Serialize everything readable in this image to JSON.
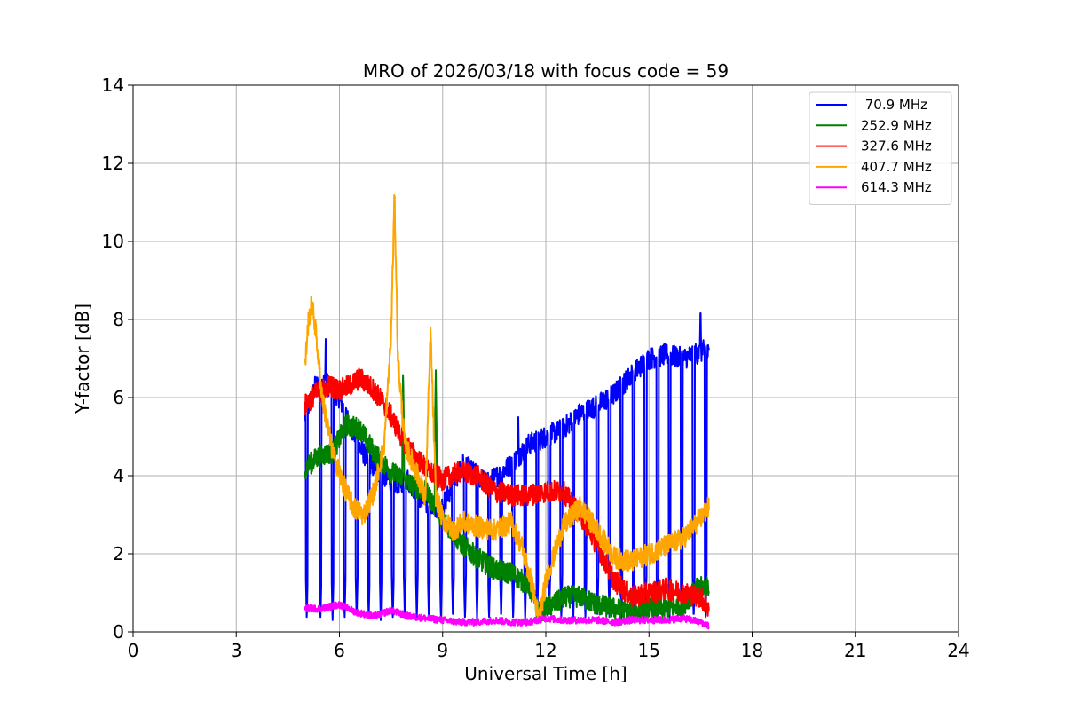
{
  "chart_data": {
    "type": "line",
    "title": "MRO of 2026/03/18 with focus code = 59",
    "xlabel": "Universal Time [h]",
    "ylabel": "Y-factor [dB]",
    "xlim": [
      0,
      24
    ],
    "ylim": [
      0,
      14
    ],
    "xticks": [
      0,
      3,
      6,
      9,
      12,
      15,
      18,
      21,
      24
    ],
    "yticks": [
      0,
      2,
      4,
      6,
      8,
      10,
      12,
      14
    ],
    "grid": true,
    "legend_position": "top-right",
    "series": [
      {
        "name": " 70.9 MHz",
        "color": "#0000ff",
        "x": [
          5.0,
          5.3,
          5.6,
          6.0,
          6.3,
          6.6,
          7.0,
          7.3,
          7.6,
          8.0,
          8.3,
          8.6,
          9.0,
          9.3,
          9.6,
          10.0,
          10.3,
          10.6,
          11.0,
          11.5,
          12.0,
          12.5,
          13.0,
          13.5,
          14.0,
          14.5,
          15.0,
          15.5,
          16.0,
          16.3,
          16.6,
          16.75
        ],
        "values": [
          5.5,
          6.3,
          6.4,
          6.0,
          5.3,
          4.7,
          4.2,
          4.0,
          3.8,
          3.9,
          3.5,
          3.2,
          3.2,
          3.8,
          4.3,
          4.0,
          3.8,
          4.0,
          4.3,
          4.8,
          5.0,
          5.2,
          5.6,
          5.8,
          6.1,
          6.6,
          7.0,
          7.1,
          7.0,
          7.1,
          7.2,
          7.1
        ],
        "dips": [
          5.05,
          5.45,
          5.8,
          6.15,
          6.5,
          6.85,
          7.2,
          7.55,
          7.9,
          8.25,
          8.6,
          8.95,
          9.3,
          9.65,
          10.0,
          10.35,
          10.7,
          11.05,
          11.4,
          11.75,
          12.1,
          12.45,
          12.8,
          13.15,
          13.5,
          13.85,
          14.2,
          14.55,
          14.9,
          15.25,
          15.6,
          15.95,
          16.3,
          16.65
        ],
        "spikes": [
          [
            5.6,
            7.5
          ],
          [
            16.5,
            8.4
          ],
          [
            11.2,
            5.5
          ]
        ]
      },
      {
        "name": "252.9 MHz",
        "color": "#008000",
        "x": [
          5.0,
          5.4,
          5.8,
          6.2,
          6.6,
          7.0,
          7.5,
          8.0,
          8.5,
          9.0,
          9.5,
          10.0,
          10.5,
          11.0,
          11.5,
          11.8,
          12.2,
          12.6,
          13.0,
          13.5,
          14.0,
          14.5,
          15.0,
          15.5,
          16.0,
          16.4,
          16.75
        ],
        "values": [
          4.2,
          4.5,
          4.6,
          5.3,
          5.2,
          4.6,
          4.1,
          3.8,
          3.6,
          2.9,
          2.3,
          1.9,
          1.6,
          1.5,
          1.2,
          0.5,
          0.7,
          0.9,
          0.9,
          0.7,
          0.6,
          0.5,
          0.6,
          0.6,
          0.7,
          1.1,
          1.2
        ],
        "spikes": [
          [
            7.85,
            6.7
          ],
          [
            8.8,
            6.7
          ]
        ]
      },
      {
        "name": "327.6 MHz",
        "color": "#ff0000",
        "x": [
          5.0,
          5.3,
          5.7,
          6.0,
          6.3,
          6.6,
          7.0,
          7.4,
          7.8,
          8.2,
          8.6,
          9.0,
          9.5,
          10.0,
          10.5,
          11.0,
          11.5,
          12.0,
          12.5,
          13.0,
          13.5,
          14.0,
          14.5,
          15.0,
          15.5,
          16.0,
          16.5,
          16.75
        ],
        "values": [
          5.8,
          6.1,
          6.3,
          6.2,
          6.3,
          6.5,
          6.2,
          5.7,
          5.0,
          4.5,
          4.1,
          3.9,
          4.1,
          4.0,
          3.6,
          3.5,
          3.5,
          3.6,
          3.6,
          3.0,
          2.2,
          1.3,
          0.9,
          1.0,
          1.1,
          1.0,
          0.9,
          0.6
        ]
      },
      {
        "name": "407.7 MHz",
        "color": "#ffa500",
        "x": [
          5.0,
          5.1,
          5.2,
          5.3,
          5.5,
          5.8,
          6.1,
          6.4,
          6.7,
          7.0,
          7.3,
          7.5,
          7.6,
          7.7,
          7.9,
          8.2,
          8.5,
          8.65,
          8.8,
          9.0,
          9.3,
          9.6,
          10.0,
          10.5,
          11.0,
          11.3,
          11.6,
          11.8,
          12.0,
          12.5,
          13.0,
          13.5,
          14.0,
          14.5,
          15.0,
          15.5,
          16.0,
          16.4,
          16.75
        ],
        "values": [
          6.8,
          8.0,
          8.4,
          7.8,
          6.0,
          4.6,
          3.8,
          3.2,
          3.0,
          3.6,
          4.8,
          7.5,
          11.2,
          7.0,
          4.8,
          4.2,
          3.4,
          7.7,
          3.5,
          2.9,
          2.6,
          2.8,
          2.7,
          2.6,
          2.8,
          2.2,
          1.2,
          0.3,
          1.3,
          2.7,
          3.2,
          2.6,
          1.9,
          1.8,
          2.0,
          2.2,
          2.4,
          2.8,
          3.2
        ]
      },
      {
        "name": "614.3 MHz",
        "color": "#ff00ff",
        "x": [
          5.0,
          5.5,
          6.0,
          6.5,
          7.0,
          7.5,
          8.0,
          8.5,
          9.0,
          9.5,
          10.0,
          10.5,
          11.0,
          11.5,
          12.0,
          12.5,
          13.0,
          13.5,
          14.0,
          14.5,
          15.0,
          15.5,
          16.0,
          16.5,
          16.75
        ],
        "values": [
          0.6,
          0.6,
          0.7,
          0.5,
          0.4,
          0.55,
          0.4,
          0.35,
          0.3,
          0.25,
          0.25,
          0.3,
          0.25,
          0.25,
          0.35,
          0.3,
          0.3,
          0.3,
          0.25,
          0.3,
          0.3,
          0.3,
          0.35,
          0.25,
          0.15
        ]
      }
    ]
  }
}
